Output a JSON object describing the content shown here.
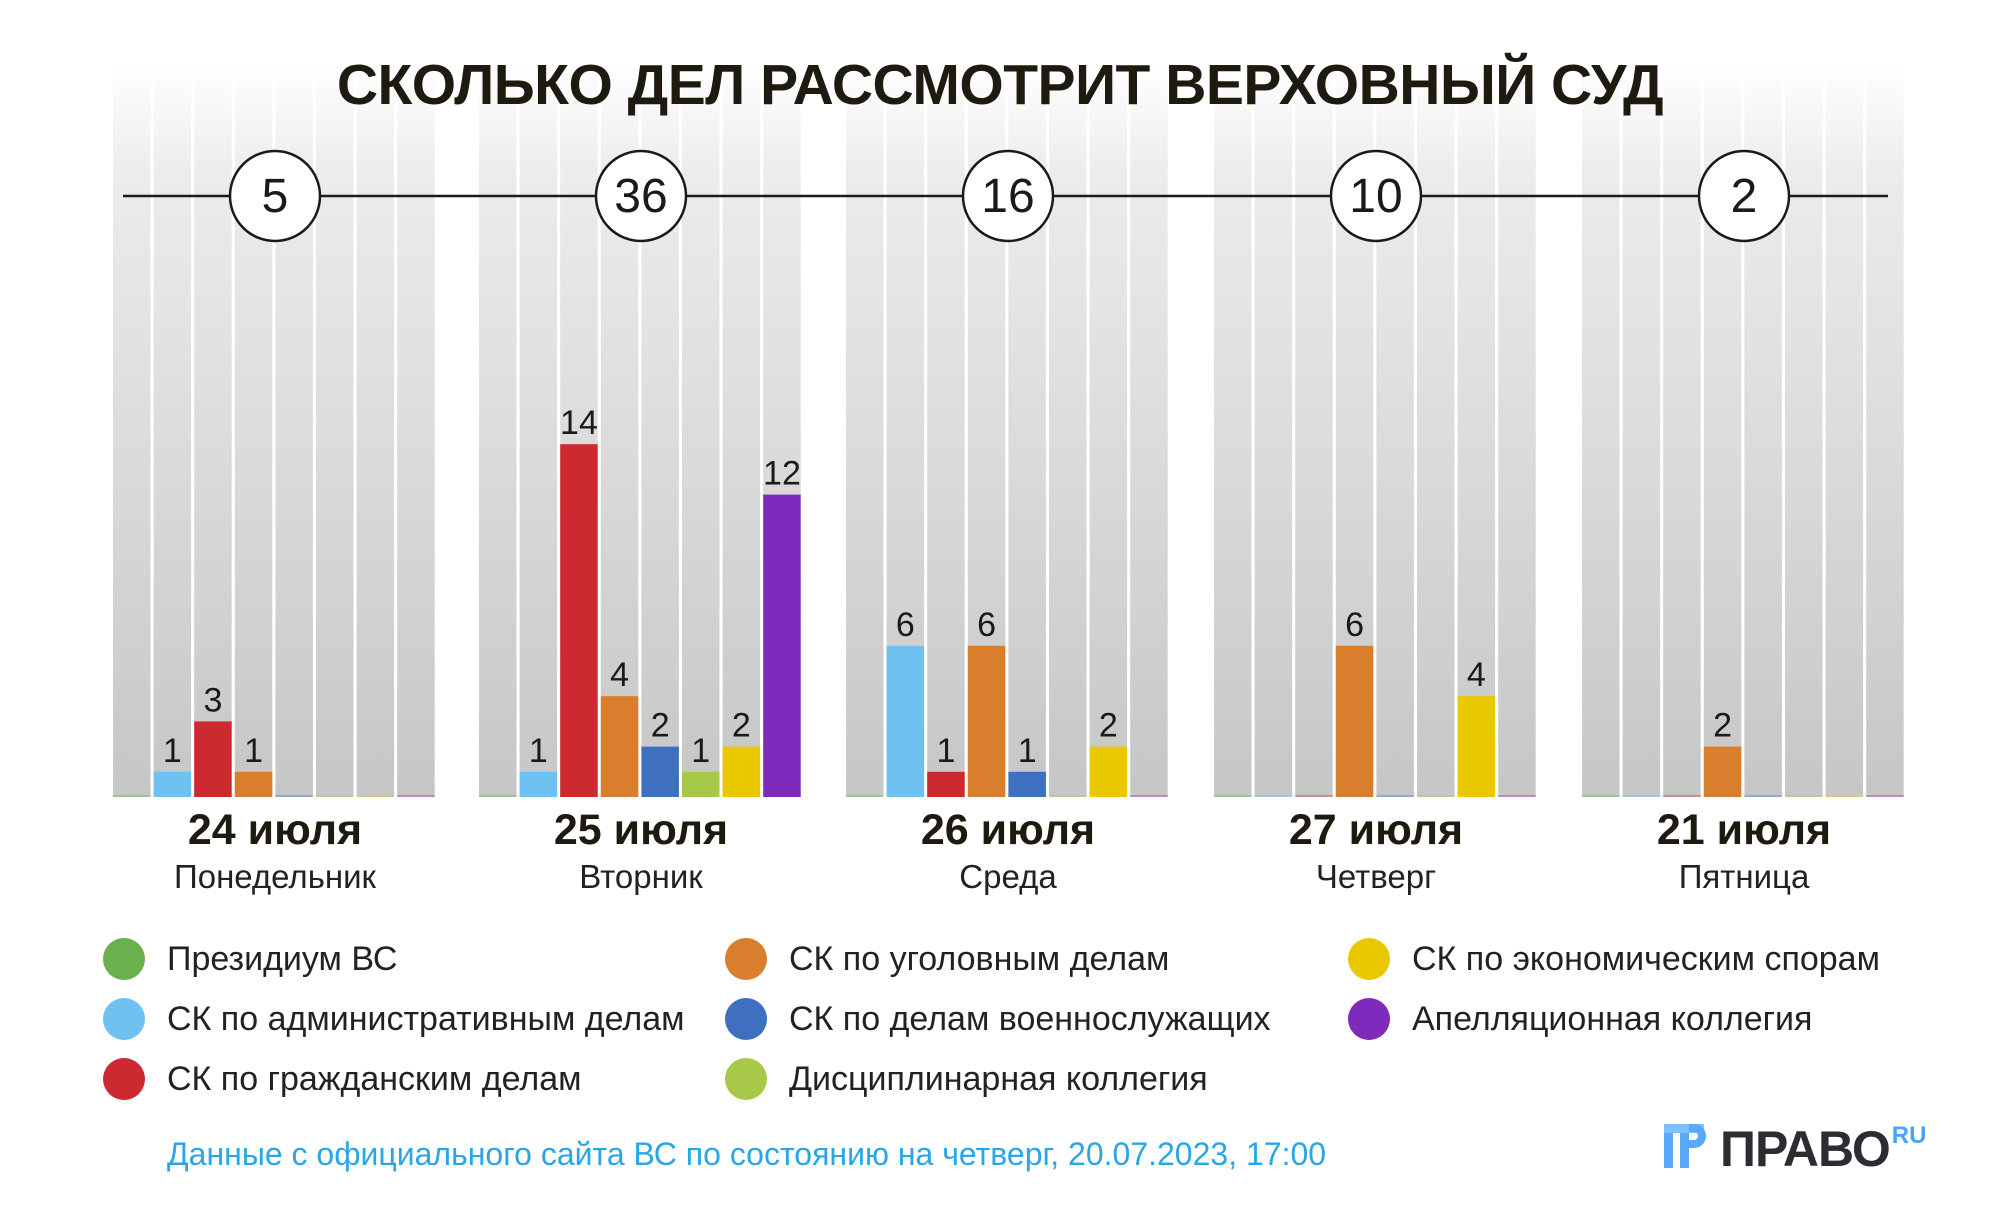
{
  "chart_data": {
    "type": "bar",
    "title": "СКОЛЬКО ДЕЛ РАССМОТРИТ ВЕРХОВНЫЙ СУД",
    "categories": [
      {
        "date": "24 июля",
        "weekday": "Понедельник",
        "total": "5"
      },
      {
        "date": "25 июля",
        "weekday": "Вторник",
        "total": "36"
      },
      {
        "date": "26 июля",
        "weekday": "Среда",
        "total": "16"
      },
      {
        "date": "27 июля",
        "weekday": "Четверг",
        "total": "10"
      },
      {
        "date": "21 июля",
        "weekday": "Пятница",
        "total": "2"
      }
    ],
    "series": [
      {
        "name": "Президиум ВС",
        "color": "#6ab04c",
        "values": [
          0,
          0,
          0,
          0,
          0
        ]
      },
      {
        "name": "СК по административным делам",
        "color": "#6ec1f0",
        "values": [
          1,
          1,
          6,
          0,
          0
        ]
      },
      {
        "name": "СК по гражданским делам",
        "color": "#cc2a30",
        "values": [
          3,
          14,
          1,
          0,
          0
        ]
      },
      {
        "name": "СК по уголовным делам",
        "color": "#d97e2c",
        "values": [
          1,
          4,
          6,
          6,
          2
        ]
      },
      {
        "name": "СК по делам военнослужащих",
        "color": "#3f6fbf",
        "values": [
          0,
          2,
          1,
          0,
          0
        ]
      },
      {
        "name": "Дисциплинарная коллегия",
        "color": "#a8c84a",
        "values": [
          0,
          1,
          0,
          0,
          0
        ]
      },
      {
        "name": "СК по экономическим спорам",
        "color": "#eac800",
        "values": [
          0,
          2,
          2,
          4,
          0
        ]
      },
      {
        "name": "Апелляционная коллегия",
        "color": "#7e2bbd",
        "values": [
          0,
          12,
          0,
          0,
          0
        ]
      }
    ],
    "grid": false,
    "legend": "bottom"
  },
  "footer": {
    "note": "Данные с официального сайта ВС по состоянию на четверг, 20.07.2023, 17:00",
    "logo_text": "ПРАВО",
    "logo_suffix": "RU"
  }
}
